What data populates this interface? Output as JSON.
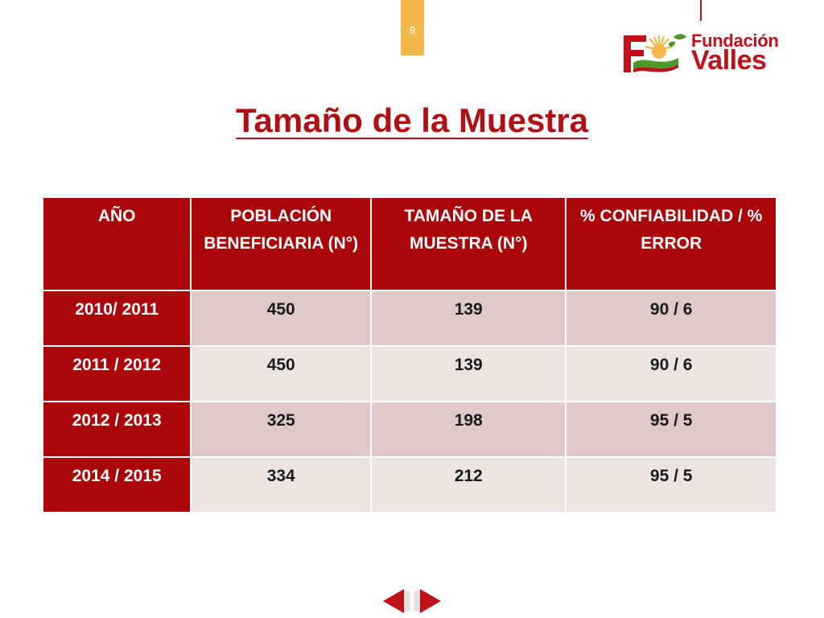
{
  "page": {
    "number": "9",
    "title": "Tamaño de la Muestra"
  },
  "logo": {
    "line1": "Fundación",
    "line2": "Valles",
    "color": "#c0111b"
  },
  "table": {
    "headers": [
      "AÑO",
      "POBLACIÓN BENEFICIARIA (N°)",
      "TAMAÑO DE LA MUESTRA (N°)",
      "% CONFIABILIDAD / % ERROR"
    ],
    "rows": [
      [
        "2010/ 2011",
        "450",
        "139",
        "90 / 6"
      ],
      [
        "2011 / 2012",
        "450",
        "139",
        "90 / 6"
      ],
      [
        "2012 / 2013",
        "325",
        "198",
        "95 / 5"
      ],
      [
        "2014 / 2015",
        "334",
        "212",
        "95 / 5"
      ]
    ]
  },
  "navigation": {
    "prev_icon": "arrow-left-icon",
    "next_icon": "arrow-right-icon"
  },
  "colors": {
    "accent": "#aa0509",
    "page_tab": "#f2b84a",
    "row_odd": "#dec8c8",
    "row_even": "#ede3e2"
  }
}
